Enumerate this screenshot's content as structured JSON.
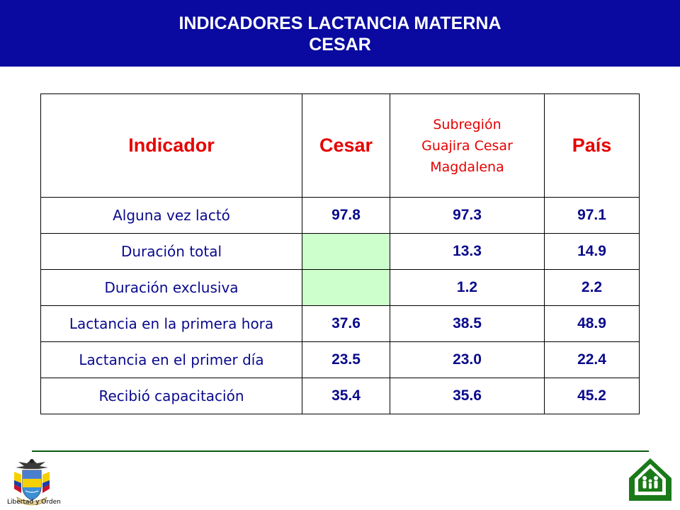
{
  "header": {
    "title_line1": "INDICADORES LACTANCIA MATERNA",
    "title_line2": "CESAR"
  },
  "table": {
    "columns": [
      "Indicador",
      "Cesar",
      "Subregión Guajira Cesar Magdalena",
      "País"
    ],
    "subregion_lines": [
      "Subregión",
      "Guajira Cesar",
      "Magdalena"
    ],
    "rows": [
      {
        "indicator": "Alguna vez lactó",
        "cesar": "97.8",
        "subregion": "97.3",
        "pais": "97.1"
      },
      {
        "indicator": "Duración total",
        "cesar": "",
        "subregion": "13.3",
        "pais": "14.9"
      },
      {
        "indicator": "Duración exclusiva",
        "cesar": "",
        "subregion": "1.2",
        "pais": "2.2"
      },
      {
        "indicator": "Lactancia en la primera hora",
        "cesar": "37.6",
        "subregion": "38.5",
        "pais": "48.9"
      },
      {
        "indicator": "Lactancia en el primer día",
        "cesar": "23.5",
        "subregion": "23.0",
        "pais": "22.4"
      },
      {
        "indicator": "Recibió capacitación",
        "cesar": "35.4",
        "subregion": "35.6",
        "pais": "45.2"
      }
    ]
  },
  "footer": {
    "shield_caption": "Libertad y Orden",
    "shield_icon": "colombia-coat-of-arms-icon",
    "family_icon": "family-house-logo-icon"
  },
  "colors": {
    "title_bar": "#0a0aa0",
    "header_text": "#e60000",
    "body_text": "#0a0a8c",
    "empty_cell": "#ccffcc",
    "rule": "#0b5a0b",
    "logo_green": "#1a7a1a"
  }
}
